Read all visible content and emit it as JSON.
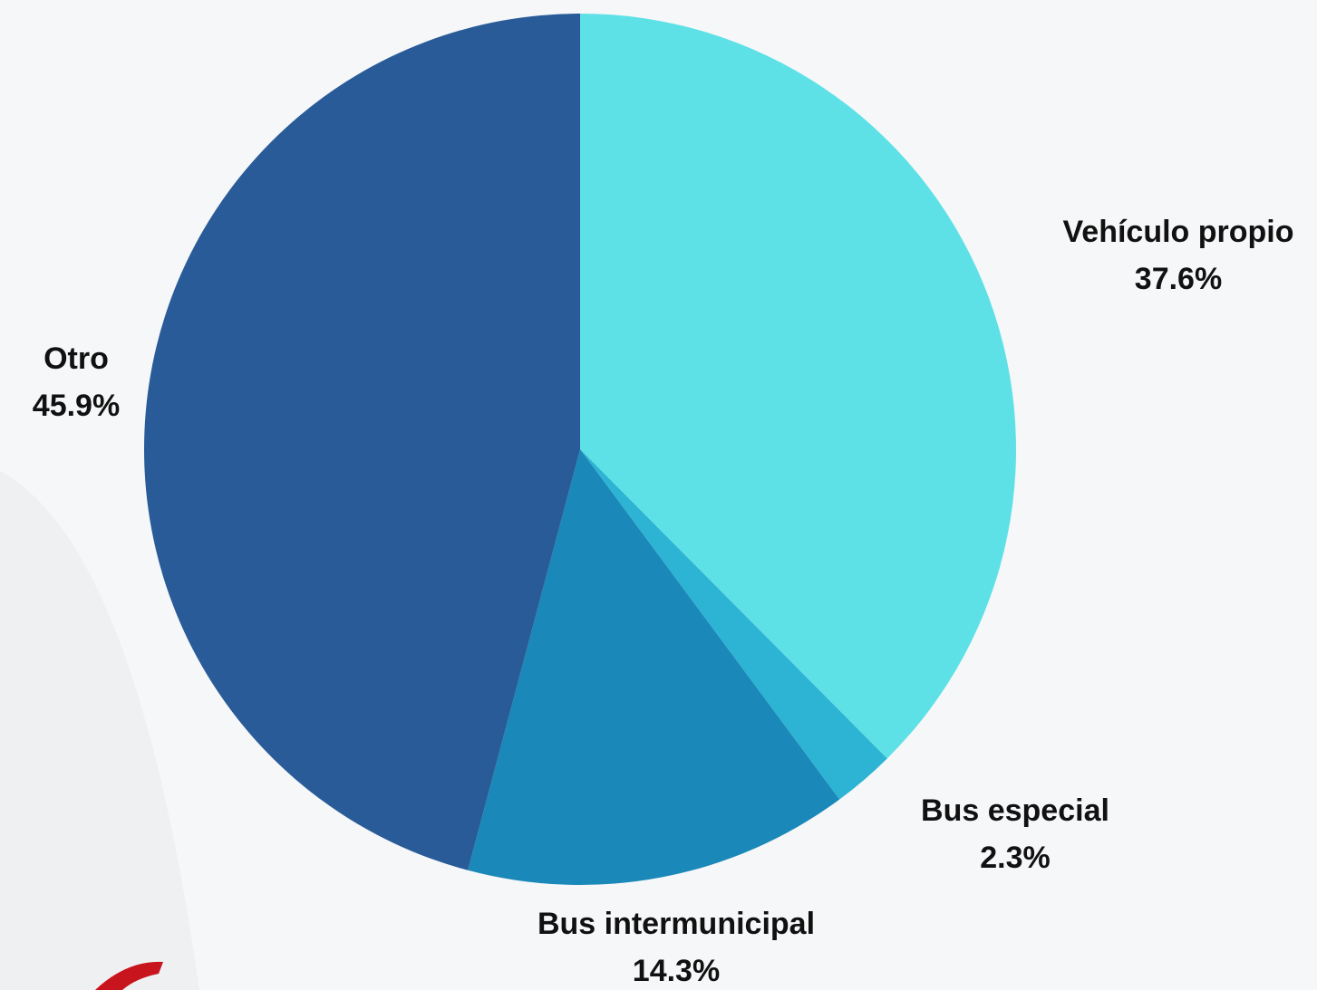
{
  "chart_data": {
    "type": "pie",
    "categories": [
      "Vehículo propio",
      "Bus especial",
      "Bus intermunicipal",
      "Otro"
    ],
    "values": [
      37.6,
      2.3,
      14.3,
      45.9
    ],
    "value_labels": [
      "37.6%",
      "2.3%",
      "14.3%",
      "45.9%"
    ],
    "colors": [
      "#5ee1e6",
      "#2db3d4",
      "#1a88b8",
      "#285b98"
    ]
  }
}
